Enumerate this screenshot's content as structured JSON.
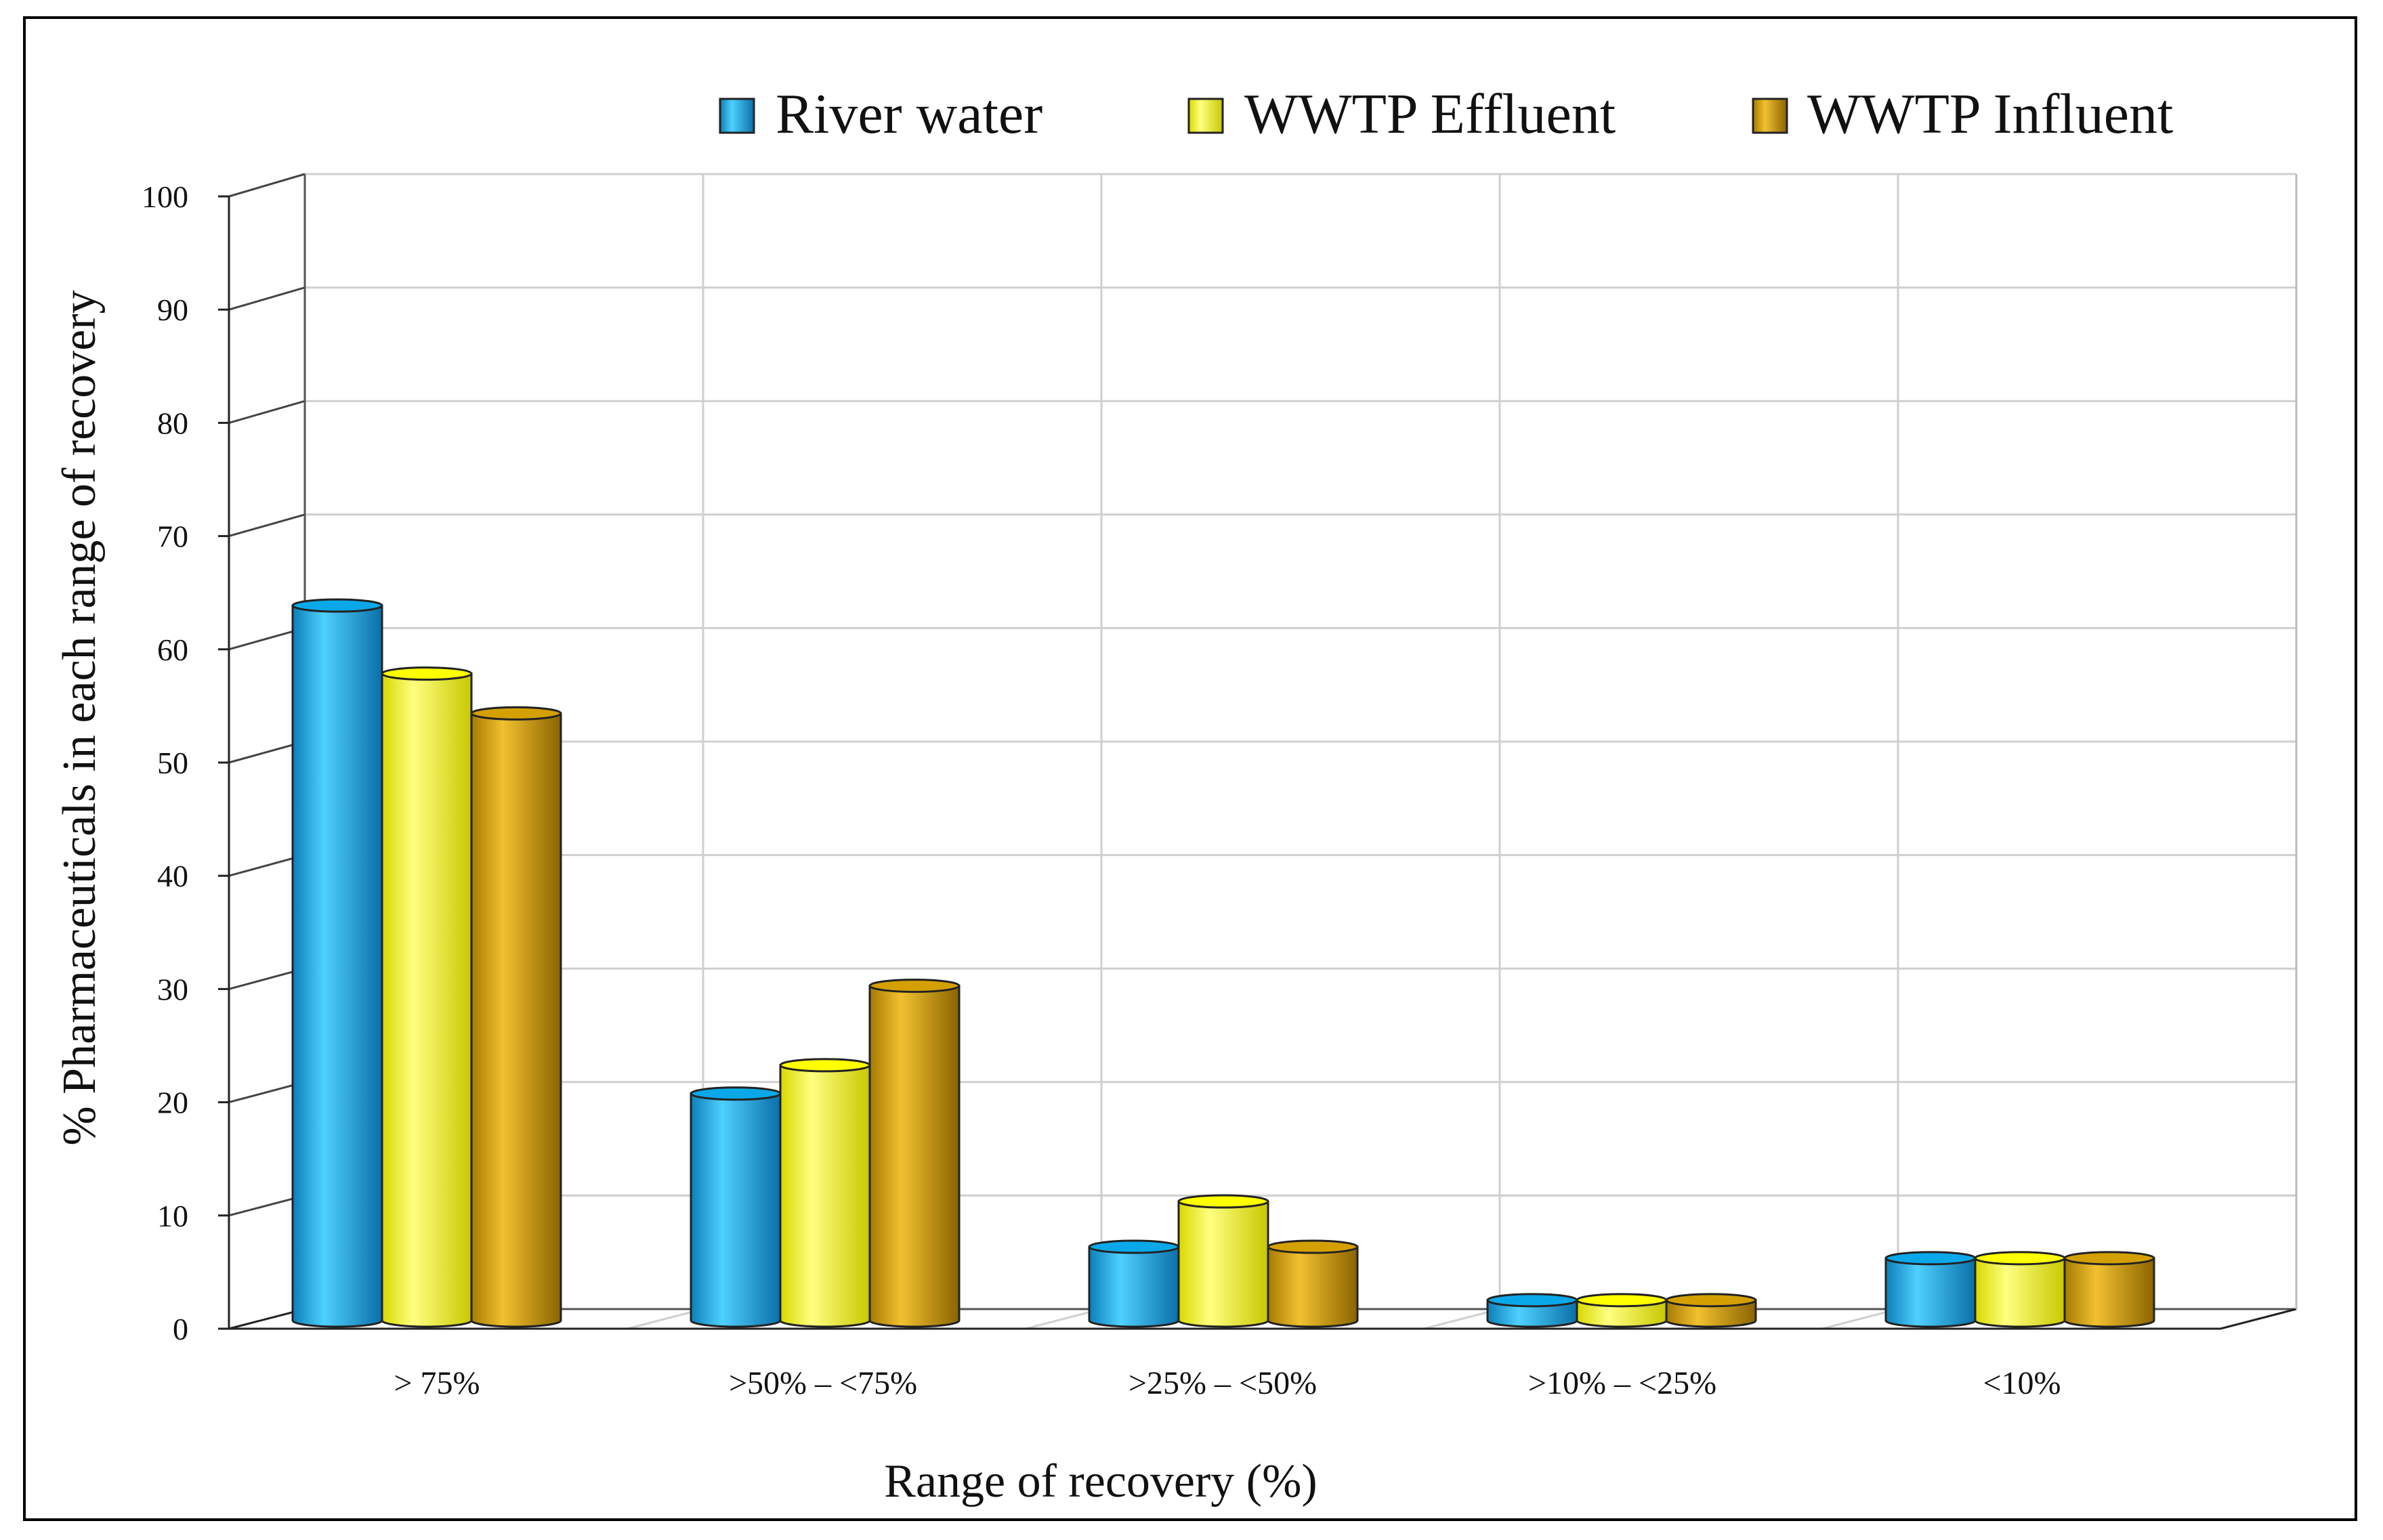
{
  "chart_data": {
    "type": "bar",
    "style": "3d-cylinder",
    "categories": [
      "> 75%",
      ">50% – <75%",
      ">25% – <50%",
      ">10% – <25%",
      "<10%"
    ],
    "series": [
      {
        "name": "River water",
        "color": "#0aa8e8",
        "values": [
          63,
          20,
          6.5,
          1.8,
          5.5
        ]
      },
      {
        "name": "WWTP Effluent",
        "color": "#ffff00",
        "values": [
          57,
          22.5,
          10.5,
          1.8,
          5.5
        ]
      },
      {
        "name": "WWTP Influent",
        "color": "#d4a000",
        "values": [
          53.5,
          29.5,
          6.5,
          1.8,
          5.5
        ]
      }
    ],
    "y_ticks": [
      "0",
      "10",
      "20",
      "30",
      "40",
      "50",
      "60",
      "70",
      "80",
      "90",
      "100"
    ],
    "ylim": [
      0,
      100
    ],
    "xlabel": "Range of recovery (%)",
    "ylabel": "% Pharmaceuticals in each range of recovery",
    "grid": true,
    "legend": "top"
  }
}
